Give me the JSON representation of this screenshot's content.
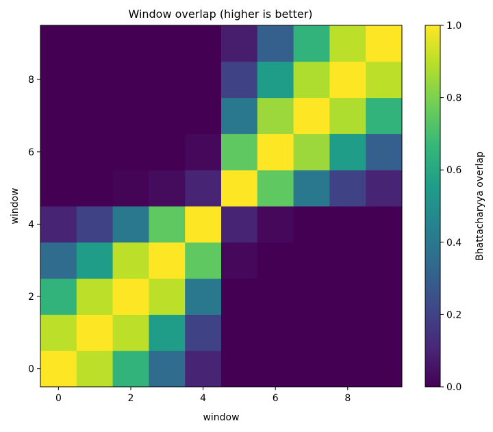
{
  "chart_data": {
    "type": "heatmap",
    "title": "Window overlap (higher is better)",
    "xlabel": "window",
    "ylabel": "window",
    "colorbar_label": "Bhattacharyya overlap",
    "colormap": "viridis",
    "vmin": 0.0,
    "vmax": 1.0,
    "x_ticks": [
      "0",
      "2",
      "4",
      "6",
      "8"
    ],
    "y_ticks": [
      "0",
      "2",
      "4",
      "6",
      "8"
    ],
    "colorbar_ticks": [
      "0.0",
      "0.2",
      "0.4",
      "0.6",
      "0.8",
      "1.0"
    ],
    "origin": "lower",
    "rows": [
      [
        1.0,
        0.9,
        0.65,
        0.35,
        0.1,
        0.0,
        0.0,
        0.0,
        0.0,
        0.0
      ],
      [
        0.9,
        1.0,
        0.9,
        0.55,
        0.2,
        0.0,
        0.0,
        0.0,
        0.0,
        0.0
      ],
      [
        0.65,
        0.9,
        1.0,
        0.9,
        0.4,
        0.0,
        0.0,
        0.0,
        0.0,
        0.0
      ],
      [
        0.35,
        0.55,
        0.9,
        1.0,
        0.75,
        0.02,
        0.0,
        0.0,
        0.0,
        0.0
      ],
      [
        0.1,
        0.2,
        0.4,
        0.75,
        1.0,
        0.1,
        0.02,
        0.0,
        0.0,
        0.0
      ],
      [
        0.0,
        0.0,
        0.01,
        0.03,
        0.1,
        1.0,
        0.75,
        0.4,
        0.2,
        0.1
      ],
      [
        0.0,
        0.0,
        0.0,
        0.0,
        0.02,
        0.75,
        1.0,
        0.85,
        0.55,
        0.3
      ],
      [
        0.0,
        0.0,
        0.0,
        0.0,
        0.0,
        0.4,
        0.85,
        1.0,
        0.88,
        0.65
      ],
      [
        0.0,
        0.0,
        0.0,
        0.0,
        0.0,
        0.2,
        0.55,
        0.88,
        1.0,
        0.9
      ],
      [
        0.0,
        0.0,
        0.0,
        0.0,
        0.0,
        0.08,
        0.3,
        0.65,
        0.9,
        1.0
      ]
    ]
  }
}
